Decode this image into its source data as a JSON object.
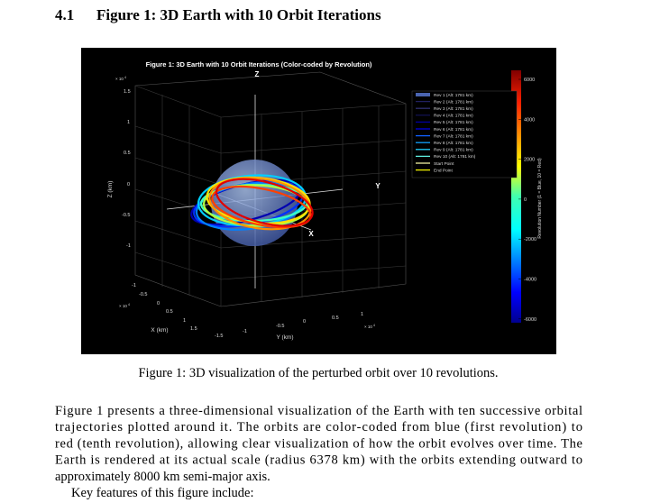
{
  "section": {
    "number": "4.1",
    "title": "Figure 1: 3D Earth with 10 Orbit Iterations"
  },
  "figure": {
    "title": "Figure 1: 3D Earth with 10 Orbit Iterations (Color-coded by Revolution)",
    "z_axis_letter": "Z",
    "x_axis_letter": "X",
    "y_axis_letter": "Y",
    "z_label": "Z (km)",
    "x_label": "X (km)",
    "y_label": "Y (km)",
    "exponent": "× 10",
    "exponent_power": "4",
    "z_ticks": [
      "1.5",
      "1",
      "0.5",
      "0",
      "-0.5",
      "-1"
    ],
    "x_ticks": [
      "-1",
      "-0.5",
      "0",
      "0.5",
      "1",
      "1.5"
    ],
    "y_ticks": [
      "-1.5",
      "-1",
      "-0.5",
      "0",
      "0.5",
      "1"
    ],
    "colorbar_ticks": [
      "6000",
      "4000",
      "2000",
      "0",
      "-2000",
      "-4000",
      "-6000"
    ],
    "colorbar_label": "Revolution Number (1 = Blue, 10 = Red)",
    "legend": [
      {
        "label": "Rev 1 (Alt: 1781 km)",
        "color": "#4a64b0"
      },
      {
        "label": "Rev 2 (Alt: 1781 km)",
        "color": "#202060"
      },
      {
        "label": "Rev 3 (Alt: 1781 km)",
        "color": "#303070"
      },
      {
        "label": "Rev 4 (Alt: 1781 km)",
        "color": "#101050"
      },
      {
        "label": "Rev 5 (Alt: 1781 km)",
        "color": "#0000a0"
      },
      {
        "label": "Rev 6 (Alt: 1781 km)",
        "color": "#0000e0"
      },
      {
        "label": "Rev 7 (Alt: 1781 km)",
        "color": "#1060ff"
      },
      {
        "label": "Rev 8 (Alt: 1781 km)",
        "color": "#10a0ff"
      },
      {
        "label": "Rev 9 (Alt: 1781 km)",
        "color": "#20d0ff"
      },
      {
        "label": "Rev 10 (Alt: 1781 km)",
        "color": "#60f0e0"
      },
      {
        "label": "Start Point",
        "color": "#f0f0a0"
      },
      {
        "label": "End Point",
        "color": "#f0f000"
      }
    ]
  },
  "caption": "Figure 1: 3D visualization of the perturbed orbit over 10 revolutions.",
  "paragraph": [
    "Figure 1 presents a three-dimensional visualization of the Earth with ten successive orbital",
    "trajectories plotted around it. The orbits are color-coded from blue (first revolution) to",
    "red (tenth revolution), allowing clear visualization of how the orbit evolves over time. The",
    "Earth is rendered at its actual scale (radius 6378 km) with the orbits extending outward to",
    "approximately 8000 km semi-major axis."
  ],
  "list_intro": "Key features of this figure include:"
}
